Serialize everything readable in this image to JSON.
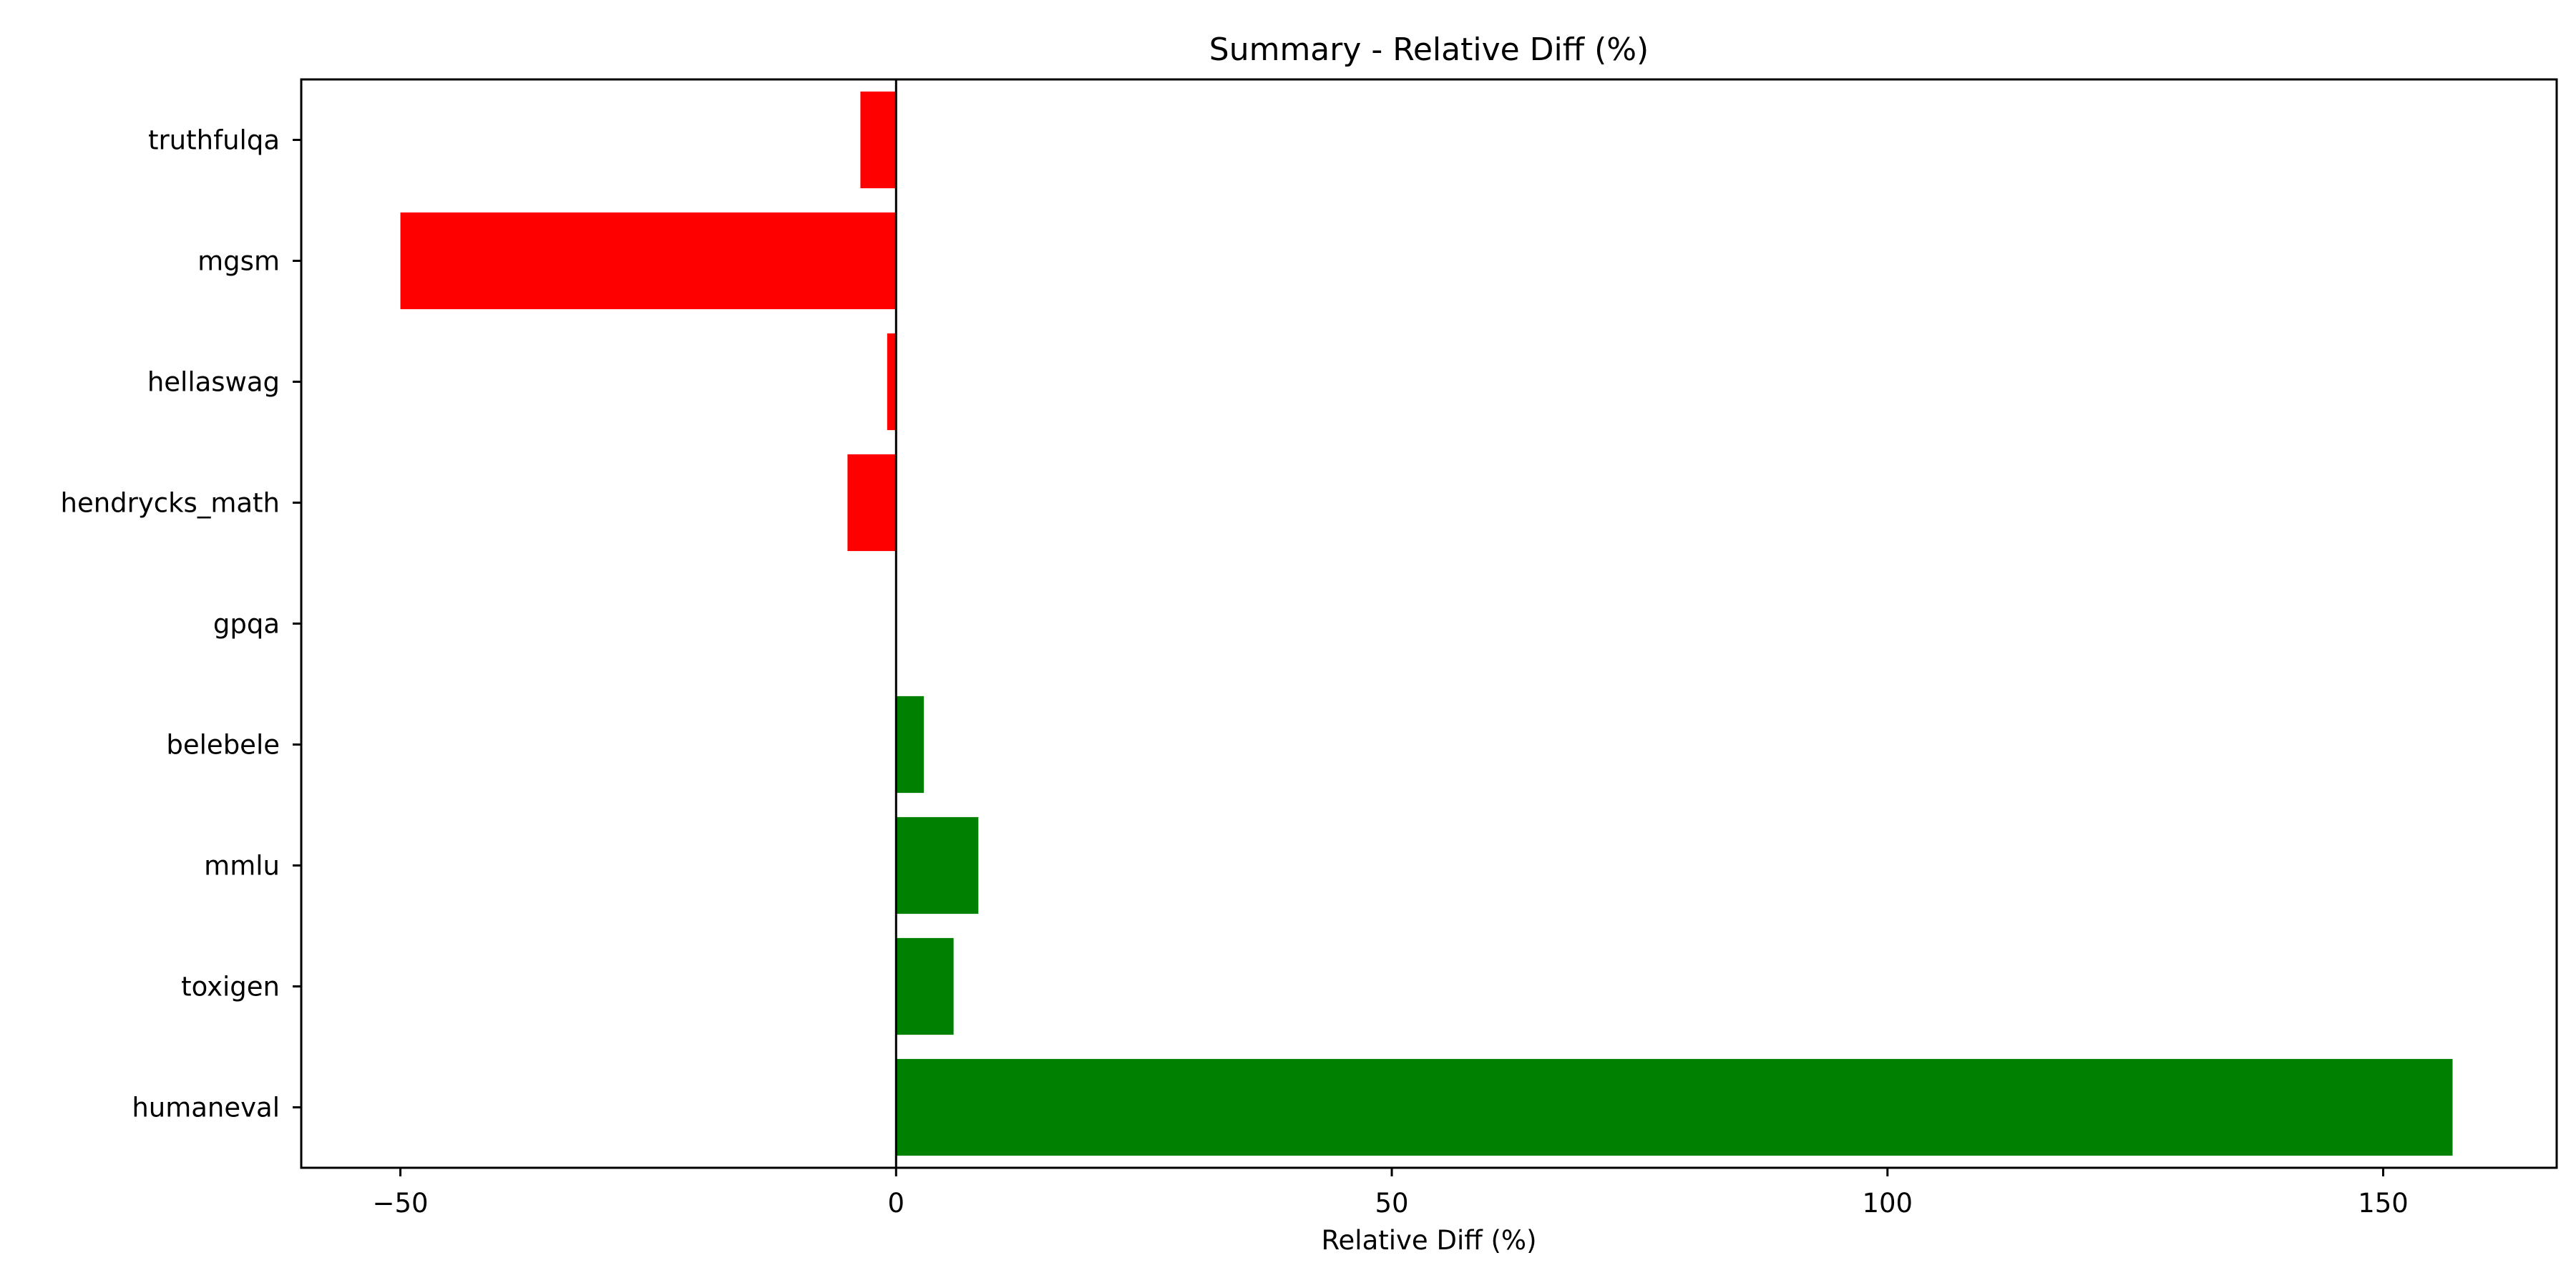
{
  "chart_data": {
    "type": "bar",
    "orientation": "horizontal",
    "title": "Summary - Relative Diff (%)",
    "xlabel": "Relative Diff (%)",
    "ylabel": "",
    "categories": [
      "truthfulqa",
      "mgsm",
      "hellaswag",
      "hendrycks_math",
      "gpqa",
      "belebele",
      "mmlu",
      "toxigen",
      "humaneval"
    ],
    "values": [
      -3.6,
      -50.0,
      -0.9,
      -4.9,
      0.0,
      2.8,
      8.3,
      5.8,
      157.0
    ],
    "xlim": [
      -60,
      167.5
    ],
    "xticks": [
      -50,
      0,
      50,
      100,
      150
    ],
    "xtick_labels": [
      "−50",
      "0",
      "50",
      "100",
      "150"
    ],
    "grid": false,
    "colors": {
      "positive": "#008000",
      "negative": "#ff0000",
      "zero_line": "#000000"
    }
  }
}
